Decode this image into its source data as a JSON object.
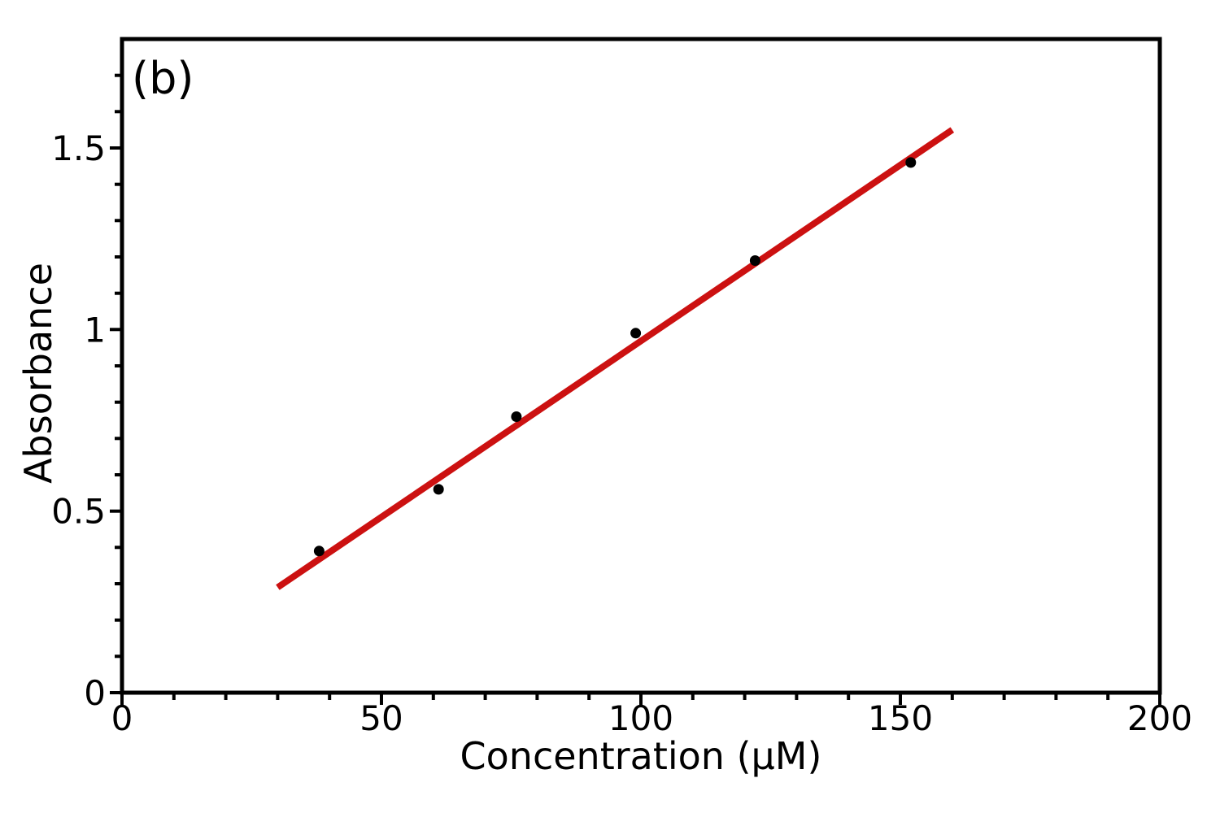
{
  "figure": {
    "background": "#ffffff",
    "axes_color": "#000000"
  },
  "chart_data": {
    "type": "scatter",
    "panel_label": "(b)",
    "title": "",
    "xlabel": "Concentration (µM)",
    "ylabel": "Absorbance",
    "xlim": [
      0,
      200
    ],
    "ylim": [
      0,
      1.8
    ],
    "grid": false,
    "legend_position": "none",
    "x_ticks": {
      "values": [
        0,
        50,
        100,
        150,
        200
      ],
      "labels": [
        "0",
        "50",
        "100",
        "150",
        "200"
      ]
    },
    "y_ticks": {
      "values": [
        0,
        0.5,
        1,
        1.5
      ],
      "labels": [
        "0",
        "0.5",
        "1",
        "1.5"
      ]
    },
    "x_minor_step": 10,
    "y_minor_step": 0.1,
    "series": [
      {
        "name": "linear-fit",
        "type": "line",
        "color": "#cc1111",
        "width": 8,
        "x": [
          30,
          160
        ],
        "y": [
          0.29,
          1.55
        ]
      },
      {
        "name": "absorbance-data",
        "type": "scatter",
        "marker": "circle",
        "color": "#000000",
        "radius": 6.5,
        "x": [
          38,
          61,
          76,
          99,
          122,
          152
        ],
        "y": [
          0.39,
          0.56,
          0.76,
          0.99,
          1.19,
          1.46
        ]
      }
    ]
  }
}
